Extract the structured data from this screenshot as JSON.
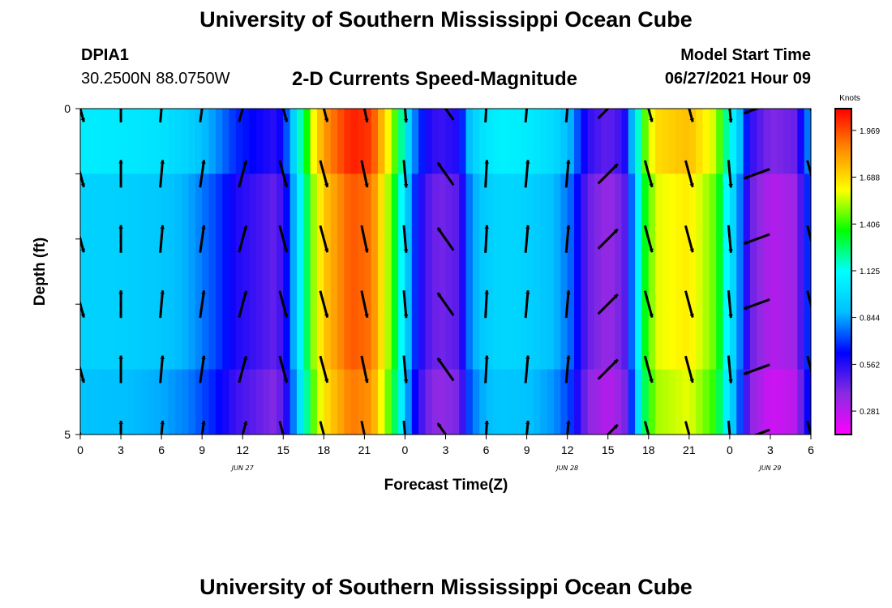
{
  "header": {
    "title": "University of Southern Mississippi Ocean Cube",
    "station": "DPIA1",
    "coords": "30.2500N  88.0750W",
    "subtitle": "2-D Currents Speed-Magnitude",
    "model_start_label": "Model Start Time",
    "model_start_value": "06/27/2021 Hour 09"
  },
  "footer": {
    "title": "University of Southern Mississippi Ocean Cube"
  },
  "colors": {
    "scale": [
      "#ff00ff",
      "#8a2be2",
      "#0000ff",
      "#00bfff",
      "#00ffff",
      "#00ff00",
      "#ffff00",
      "#ff8c00",
      "#ff0000"
    ]
  },
  "chart_data": {
    "type": "heatmap",
    "title": "2-D Currents Speed-Magnitude",
    "xlabel": "Forecast Time(Z)",
    "ylabel": "Depth (ft)",
    "x_range_hours": [
      0,
      54
    ],
    "ylim": [
      0,
      5
    ],
    "y_ticks": [
      "0",
      "5"
    ],
    "x_ticks": [
      {
        "hour": 0,
        "label": "0"
      },
      {
        "hour": 3,
        "label": "3"
      },
      {
        "hour": 6,
        "label": "6"
      },
      {
        "hour": 9,
        "label": "9"
      },
      {
        "hour": 12,
        "label": "12"
      },
      {
        "hour": 15,
        "label": "15"
      },
      {
        "hour": 18,
        "label": "18"
      },
      {
        "hour": 21,
        "label": "21"
      },
      {
        "hour": 24,
        "label": "0"
      },
      {
        "hour": 27,
        "label": "3"
      },
      {
        "hour": 30,
        "label": "6"
      },
      {
        "hour": 33,
        "label": "9"
      },
      {
        "hour": 36,
        "label": "12"
      },
      {
        "hour": 39,
        "label": "15"
      },
      {
        "hour": 42,
        "label": "18"
      },
      {
        "hour": 45,
        "label": "21"
      },
      {
        "hour": 48,
        "label": "0"
      },
      {
        "hour": 51,
        "label": "3"
      },
      {
        "hour": 54,
        "label": "6"
      }
    ],
    "date_labels": [
      {
        "hour": 12,
        "label": "JUN 27"
      },
      {
        "hour": 36,
        "label": "JUN 28"
      },
      {
        "hour": 51,
        "label": "JUN 29"
      }
    ],
    "colorbar": {
      "label": "Knots",
      "range": [
        0.14,
        2.1
      ],
      "ticks": [
        "0.281",
        "0.562",
        "0.844",
        "1.125",
        "1.406",
        "1.688",
        "1.969"
      ]
    },
    "depth_levels": [
      0,
      1,
      2,
      3,
      4,
      5
    ],
    "speed_profile": [
      {
        "hour": 0,
        "speed": 0.95
      },
      {
        "hour": 3,
        "speed": 0.94
      },
      {
        "hour": 6,
        "speed": 0.91
      },
      {
        "hour": 8,
        "speed": 0.85
      },
      {
        "hour": 10,
        "speed": 0.72
      },
      {
        "hour": 11.5,
        "speed": 0.58
      },
      {
        "hour": 13,
        "speed": 0.52
      },
      {
        "hour": 14.5,
        "speed": 0.45
      },
      {
        "hour": 15.5,
        "speed": 0.7
      },
      {
        "hour": 16,
        "speed": 1.0
      },
      {
        "hour": 16.6,
        "speed": 1.2
      },
      {
        "hour": 17.2,
        "speed": 1.5
      },
      {
        "hour": 18,
        "speed": 1.72
      },
      {
        "hour": 20,
        "speed": 1.95
      },
      {
        "hour": 21.5,
        "speed": 1.9
      },
      {
        "hour": 23,
        "speed": 1.45
      },
      {
        "hour": 23.8,
        "speed": 1.1
      },
      {
        "hour": 24.5,
        "speed": 0.75
      },
      {
        "hour": 25.5,
        "speed": 0.5
      },
      {
        "hour": 26.5,
        "speed": 0.42
      },
      {
        "hour": 28,
        "speed": 0.48
      },
      {
        "hour": 28.8,
        "speed": 0.8
      },
      {
        "hour": 29.5,
        "speed": 0.9
      },
      {
        "hour": 31,
        "speed": 0.97
      },
      {
        "hour": 33,
        "speed": 0.95
      },
      {
        "hour": 35,
        "speed": 0.88
      },
      {
        "hour": 36.3,
        "speed": 0.75
      },
      {
        "hour": 37.5,
        "speed": 0.45
      },
      {
        "hour": 39,
        "speed": 0.35
      },
      {
        "hour": 40.2,
        "speed": 0.45
      },
      {
        "hour": 41,
        "speed": 0.9
      },
      {
        "hour": 41.6,
        "speed": 1.3
      },
      {
        "hour": 42.5,
        "speed": 1.58
      },
      {
        "hour": 45,
        "speed": 1.65
      },
      {
        "hour": 47,
        "speed": 1.45
      },
      {
        "hour": 47.8,
        "speed": 1.1
      },
      {
        "hour": 48.5,
        "speed": 0.9
      },
      {
        "hour": 49.5,
        "speed": 0.45
      },
      {
        "hour": 51,
        "speed": 0.3
      },
      {
        "hour": 53,
        "speed": 0.35
      },
      {
        "hour": 53.6,
        "speed": 0.7
      },
      {
        "hour": 54,
        "speed": 0.65
      }
    ],
    "surface_offset_knots": 0.1,
    "vectors": [
      {
        "hour": 0,
        "bearing_deg": 165,
        "length_kt": 0.8
      },
      {
        "hour": 3,
        "bearing_deg": 0,
        "length_kt": 0.8
      },
      {
        "hour": 6,
        "bearing_deg": 5,
        "length_kt": 0.8
      },
      {
        "hour": 9,
        "bearing_deg": 8,
        "length_kt": 0.8
      },
      {
        "hour": 12,
        "bearing_deg": 15,
        "length_kt": 0.8
      },
      {
        "hour": 15,
        "bearing_deg": 165,
        "length_kt": 0.8
      },
      {
        "hour": 18,
        "bearing_deg": 165,
        "length_kt": 0.8
      },
      {
        "hour": 21,
        "bearing_deg": 168,
        "length_kt": 0.8
      },
      {
        "hour": 24,
        "bearing_deg": 175,
        "length_kt": 0.8
      },
      {
        "hour": 27,
        "bearing_deg": 325,
        "length_kt": 0.8
      },
      {
        "hour": 30,
        "bearing_deg": 3,
        "length_kt": 0.8
      },
      {
        "hour": 33,
        "bearing_deg": 5,
        "length_kt": 0.8
      },
      {
        "hour": 36,
        "bearing_deg": 5,
        "length_kt": 0.8
      },
      {
        "hour": 39,
        "bearing_deg": 45,
        "length_kt": 0.8
      },
      {
        "hour": 42,
        "bearing_deg": 165,
        "length_kt": 0.8
      },
      {
        "hour": 45,
        "bearing_deg": 165,
        "length_kt": 0.8
      },
      {
        "hour": 48,
        "bearing_deg": 175,
        "length_kt": 0.8
      },
      {
        "hour": 50,
        "bearing_deg": 250,
        "length_kt": 0.8
      },
      {
        "hour": 54,
        "bearing_deg": 165,
        "length_kt": 0.8
      }
    ]
  }
}
